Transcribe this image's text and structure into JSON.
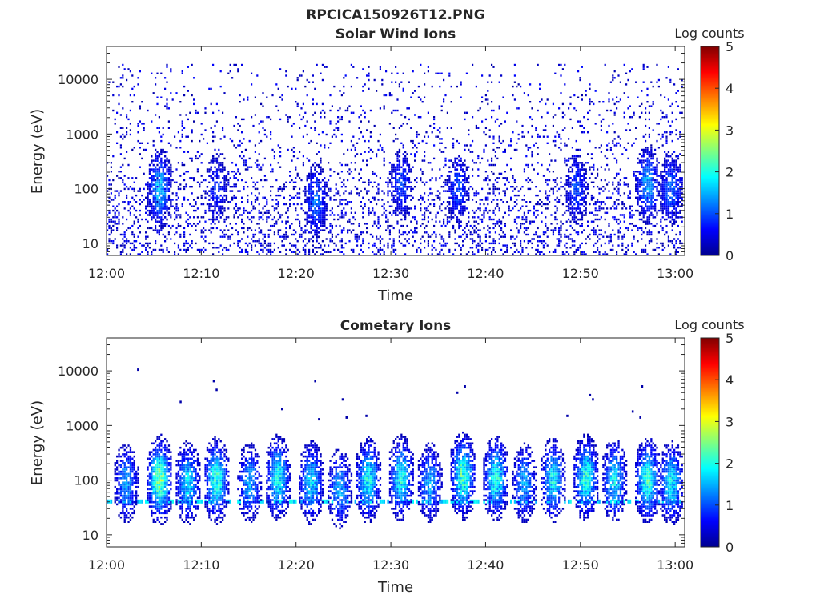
{
  "figure": {
    "title_line1": "RPCICA150926T12.PNG"
  },
  "colormap": {
    "name": "jet",
    "stops": [
      "#00008f",
      "#0000ff",
      "#0080ff",
      "#00ffff",
      "#80ff80",
      "#ffff00",
      "#ff8000",
      "#ff0000",
      "#800000"
    ],
    "background": "#ffffff",
    "frame_color": "#262626"
  },
  "chart_data": [
    {
      "type": "heatmap",
      "title": "Solar Wind Ions",
      "xlabel": "Time",
      "ylabel": "Energy (eV)",
      "yscale": "log",
      "xlim": [
        "12:00",
        "13:01"
      ],
      "ylim": [
        6,
        40000
      ],
      "x_ticks": [
        "12:00",
        "12:10",
        "12:20",
        "12:30",
        "12:40",
        "12:50",
        "13:00"
      ],
      "y_ticks": [
        10,
        100,
        1000,
        10000
      ],
      "colorbar": {
        "label": "Log counts",
        "min": 0,
        "max": 5,
        "ticks": [
          0,
          1,
          2,
          3,
          4,
          5
        ]
      },
      "grid": false,
      "noise": {
        "description": "sparse single counts",
        "log_counts": 0.1,
        "energy_range": [
          6,
          20000
        ]
      },
      "bursts": [
        {
          "time": "12:05.5",
          "energy_peak": 100,
          "log_counts": 1.6
        },
        {
          "time": "12:11.5",
          "energy_peak": 100,
          "log_counts": 0.9
        },
        {
          "time": "12:22.0",
          "energy_peak": 60,
          "log_counts": 1.2
        },
        {
          "time": "12:31.0",
          "energy_peak": 120,
          "log_counts": 1.0
        },
        {
          "time": "12:37.0",
          "energy_peak": 100,
          "log_counts": 1.0
        },
        {
          "time": "12:49.5",
          "energy_peak": 100,
          "log_counts": 1.0
        },
        {
          "time": "12:57.0",
          "energy_peak": 120,
          "log_counts": 1.5
        },
        {
          "time": "12:59.5",
          "energy_peak": 100,
          "log_counts": 1.2
        }
      ]
    },
    {
      "type": "heatmap",
      "title": "Cometary Ions",
      "xlabel": "Time",
      "ylabel": "Energy (eV)",
      "yscale": "log",
      "xlim": [
        "12:00",
        "13:01"
      ],
      "ylim": [
        6,
        40000
      ],
      "x_ticks": [
        "12:00",
        "12:10",
        "12:20",
        "12:30",
        "12:40",
        "12:50",
        "13:00"
      ],
      "y_ticks": [
        10,
        100,
        1000,
        10000
      ],
      "colorbar": {
        "label": "Log counts",
        "min": 0,
        "max": 5,
        "ticks": [
          0,
          1,
          2,
          3,
          4,
          5
        ]
      },
      "grid": false,
      "baseline": {
        "energy": 40,
        "log_counts": 1.7
      },
      "bursts": [
        {
          "time": "12:02.0",
          "energy_peak": 90,
          "log_counts": 1.5
        },
        {
          "time": "12:05.5",
          "energy_peak": 100,
          "log_counts": 2.6
        },
        {
          "time": "12:08.5",
          "energy_peak": 90,
          "log_counts": 1.8
        },
        {
          "time": "12:11.5",
          "energy_peak": 100,
          "log_counts": 2.2
        },
        {
          "time": "12:15.0",
          "energy_peak": 90,
          "log_counts": 1.5
        },
        {
          "time": "12:18.0",
          "energy_peak": 110,
          "log_counts": 2.0
        },
        {
          "time": "12:21.5",
          "energy_peak": 90,
          "log_counts": 1.8
        },
        {
          "time": "12:24.5",
          "energy_peak": 70,
          "log_counts": 1.5
        },
        {
          "time": "12:27.5",
          "energy_peak": 100,
          "log_counts": 2.0
        },
        {
          "time": "12:31.0",
          "energy_peak": 110,
          "log_counts": 2.0
        },
        {
          "time": "12:34.0",
          "energy_peak": 90,
          "log_counts": 1.5
        },
        {
          "time": "12:37.5",
          "energy_peak": 120,
          "log_counts": 2.3
        },
        {
          "time": "12:41.0",
          "energy_peak": 110,
          "log_counts": 2.1
        },
        {
          "time": "12:44.0",
          "energy_peak": 90,
          "log_counts": 1.5
        },
        {
          "time": "12:47.0",
          "energy_peak": 100,
          "log_counts": 1.9
        },
        {
          "time": "12:50.5",
          "energy_peak": 110,
          "log_counts": 2.1
        },
        {
          "time": "12:53.5",
          "energy_peak": 100,
          "log_counts": 1.8
        },
        {
          "time": "12:57.0",
          "energy_peak": 100,
          "log_counts": 2.2
        },
        {
          "time": "12:59.5",
          "energy_peak": 90,
          "log_counts": 1.9
        }
      ],
      "scattered_points": [
        {
          "time": "12:03.3",
          "energy": 10500
        },
        {
          "time": "12:07.8",
          "energy": 2700
        },
        {
          "time": "12:11.3",
          "energy": 6500
        },
        {
          "time": "12:11.6",
          "energy": 4500
        },
        {
          "time": "12:18.5",
          "energy": 2000
        },
        {
          "time": "12:22.0",
          "energy": 6500
        },
        {
          "time": "12:22.4",
          "energy": 1300
        },
        {
          "time": "12:24.9",
          "energy": 3000
        },
        {
          "time": "12:25.3",
          "energy": 1400
        },
        {
          "time": "12:27.4",
          "energy": 1500
        },
        {
          "time": "12:37.0",
          "energy": 4000
        },
        {
          "time": "12:37.8",
          "energy": 5200
        },
        {
          "time": "12:48.6",
          "energy": 1500
        },
        {
          "time": "12:51.0",
          "energy": 3600
        },
        {
          "time": "12:51.3",
          "energy": 3000
        },
        {
          "time": "12:55.5",
          "energy": 1800
        },
        {
          "time": "12:56.3",
          "energy": 1400
        },
        {
          "time": "12:56.5",
          "energy": 5200
        }
      ]
    }
  ]
}
